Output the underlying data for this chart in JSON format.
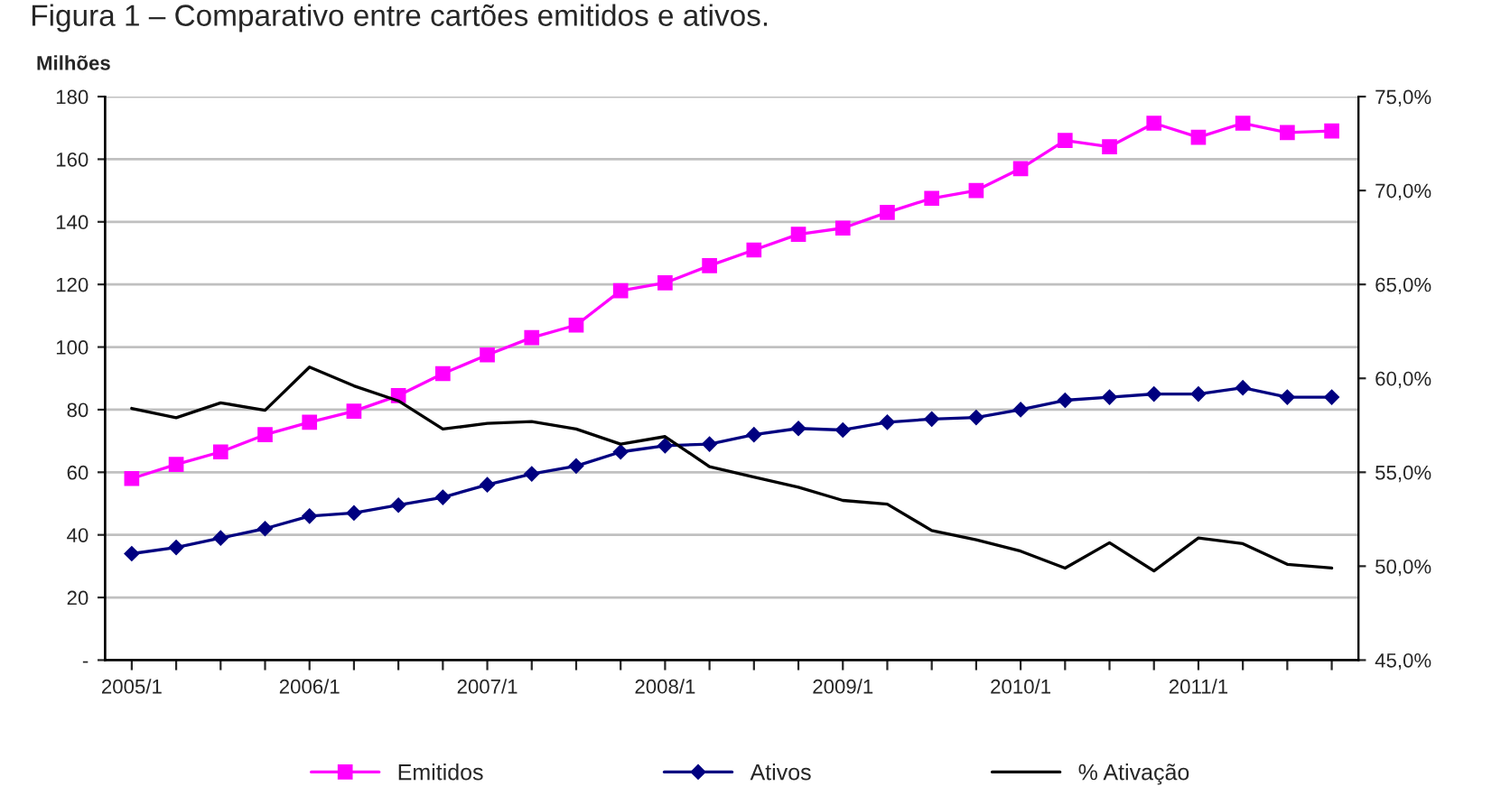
{
  "chart_data": {
    "type": "line",
    "title": "Figura 1 – Comparativo entre cartões emitidos e ativos.",
    "ylabel": "Milhões",
    "categories": [
      "2005/1",
      null,
      null,
      null,
      "2006/1",
      null,
      null,
      null,
      "2007/1",
      null,
      null,
      null,
      "2008/1",
      null,
      null,
      null,
      "2009/1",
      null,
      null,
      null,
      "2010/1",
      null,
      null,
      null,
      "2011/1",
      null,
      null,
      null
    ],
    "series": [
      {
        "name": "Emitidos",
        "color": "#ff00ff",
        "marker": "square",
        "values": [
          58,
          62.5,
          66.5,
          72,
          76,
          79.5,
          84.5,
          91.5,
          97.5,
          103,
          107,
          118,
          120.5,
          126,
          131,
          136,
          138,
          143,
          147.5,
          150,
          157,
          166,
          164,
          171.5,
          167,
          171.5,
          168.5,
          169
        ]
      },
      {
        "name": "Ativos",
        "color": "#000080",
        "marker": "diamond",
        "values": [
          34,
          36,
          39,
          42,
          46,
          47,
          49.5,
          52,
          56,
          59.5,
          62,
          66.5,
          68.5,
          69,
          72,
          74,
          73.5,
          76,
          77,
          77.5,
          80,
          83,
          84,
          85,
          85,
          87,
          84,
          84
        ]
      },
      {
        "name": "% Ativação",
        "color": "#000000",
        "marker": "none",
        "axis": "y2",
        "values": [
          58.4,
          57.9,
          58.7,
          58.3,
          60.6,
          59.6,
          58.8,
          57.3,
          57.6,
          57.7,
          57.3,
          56.5,
          56.9,
          55.3,
          54.75,
          54.2,
          53.5,
          53.3,
          51.9,
          51.4,
          50.8,
          49.9,
          51.25,
          49.75,
          51.5,
          51.2,
          50.1,
          49.9
        ]
      }
    ],
    "ylim": [
      0,
      180
    ],
    "yticks": [
      {
        "value": 0,
        "label": "-"
      },
      20,
      40,
      60,
      80,
      100,
      120,
      140,
      160,
      180
    ],
    "y2lim": [
      45,
      75
    ],
    "y2ticks": [
      {
        "value": 45,
        "label": "45,0%"
      },
      {
        "value": 50,
        "label": "50,0%"
      },
      {
        "value": 55,
        "label": "55,0%"
      },
      {
        "value": 60,
        "label": "60,0%"
      },
      {
        "value": 65,
        "label": "65,0%"
      },
      {
        "value": 70,
        "label": "70,0%"
      },
      {
        "value": 75,
        "label": "75,0%"
      }
    ],
    "grid": "y",
    "legend": "bottom",
    "line_style": "solid"
  }
}
